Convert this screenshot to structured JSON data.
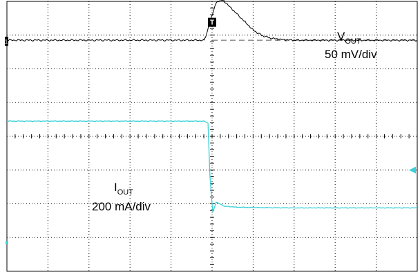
{
  "chart_data": {
    "type": "line",
    "grid": true,
    "grid_divisions": {
      "x": 10,
      "y": 8
    },
    "x_range_div": [
      0,
      10
    ],
    "y_range_div": [
      0,
      8
    ],
    "trigger_marker": "T",
    "vout_ground_marker": "1",
    "iout_ground_marker": "4",
    "series": [
      {
        "name_main": "V",
        "name_sub": "OUT",
        "scale": "50 mV/div",
        "color": "#000000",
        "x": [
          0,
          4.8,
          4.84,
          4.92,
          5.0,
          5.1,
          5.2,
          5.3,
          5.5,
          5.8,
          6.0,
          6.2,
          6.4,
          6.6,
          6.8,
          7.0,
          10
        ],
        "y": [
          6.85,
          6.85,
          6.95,
          7.25,
          7.6,
          7.95,
          8.05,
          8.0,
          7.75,
          7.4,
          7.15,
          7.0,
          6.92,
          6.88,
          6.86,
          6.85,
          6.85
        ]
      },
      {
        "name_main": "I",
        "name_sub": "OUT",
        "scale": "200 mA/div",
        "color": "#3ad0d6",
        "x": [
          0,
          4.8,
          4.9,
          4.95,
          5.0,
          5.02,
          5.1,
          5.3,
          5.6,
          6.0,
          7.0,
          8.0,
          10
        ],
        "y": [
          4.45,
          4.45,
          4.4,
          2.8,
          2.0,
          1.75,
          2.05,
          1.93,
          1.9,
          1.89,
          1.88,
          1.88,
          1.88
        ]
      }
    ],
    "reference_lines": [
      {
        "style": "solid",
        "x": [
          0.5,
          9.6
        ],
        "y": 9.1
      },
      {
        "style": "dashed",
        "x": [
          5.0,
          10
        ],
        "y": 6.85
      }
    ]
  }
}
